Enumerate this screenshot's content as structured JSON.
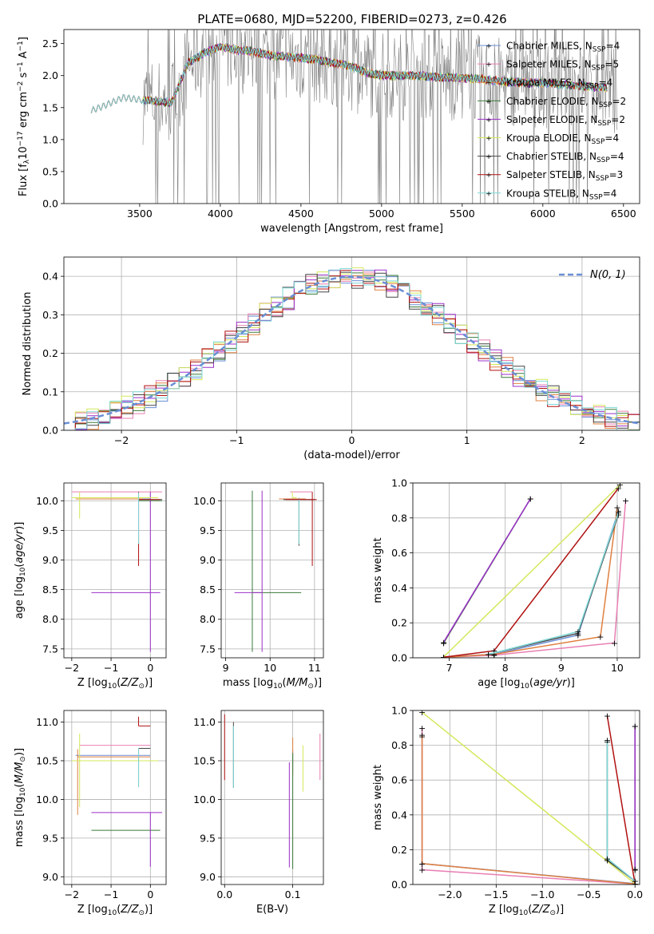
{
  "figure_title": "PLATE=0680, MJD=52200, FIBERID=0273, z=0.426",
  "colors": {
    "Chabrier MILES": "#6a8fd6",
    "Salpeter MILES": "#e87fb4",
    "Kroupa MILES": "#e08040",
    "Chabrier ELODIE": "#3a7a3a",
    "Salpeter ELODIE": "#9b30c8",
    "Kroupa ELODIE": "#d4e85a",
    "Chabrier STELIB": "#444444",
    "Salpeter STELIB": "#b01010",
    "Kroupa STELIB": "#7fd8d8",
    "data": "#808080"
  },
  "legend_spectrum": [
    {
      "base": "Chabrier MILES",
      "n": "4"
    },
    {
      "base": "Salpeter MILES",
      "n": "5"
    },
    {
      "base": "Kroupa MILES",
      "n": "4"
    },
    {
      "base": "Chabrier ELODIE",
      "n": "2"
    },
    {
      "base": "Salpeter ELODIE",
      "n": "2"
    },
    {
      "base": "Kroupa ELODIE",
      "n": "4"
    },
    {
      "base": "Chabrier STELIB",
      "n": "4"
    },
    {
      "base": "Salpeter STELIB",
      "n": "3"
    },
    {
      "base": "Kroupa STELIB",
      "n": "4"
    }
  ],
  "chart_data": [
    {
      "id": "spectrum",
      "type": "line",
      "title": "PLATE=0680, MJD=52200, FIBERID=0273, z=0.426",
      "xlabel": "wavelength [Angstrom, rest frame]",
      "ylabel": "Flux [f_λ 10^-17 erg cm^-2 s^-1 A^-1]",
      "xlim": [
        3030,
        6600
      ],
      "ylim": [
        0,
        2.72
      ],
      "xticks": [
        3500,
        4000,
        4500,
        5000,
        5500,
        6000,
        6500
      ],
      "yticks": [
        0.0,
        0.5,
        1.0,
        1.5,
        2.0,
        2.5
      ],
      "continuum": {
        "x": [
          3200,
          3300,
          3400,
          3500,
          3600,
          3700,
          3800,
          3900,
          4000,
          4100,
          4200,
          4300,
          4400,
          4500,
          4600,
          4700,
          4800,
          4900,
          5000,
          5200,
          5400,
          5600,
          5800,
          6000,
          6200,
          6400
        ],
        "y": [
          1.45,
          1.55,
          1.66,
          1.62,
          1.6,
          1.58,
          2.2,
          2.35,
          2.45,
          2.4,
          2.38,
          2.32,
          2.3,
          2.28,
          2.25,
          2.2,
          2.15,
          2.05,
          2.0,
          2.0,
          1.97,
          1.95,
          1.9,
          1.88,
          1.85,
          1.8
        ]
      },
      "series": [
        {
          "name": "Chabrier MILES, N_SSP=4"
        },
        {
          "name": "Salpeter MILES, N_SSP=5"
        },
        {
          "name": "Kroupa MILES, N_SSP=4"
        },
        {
          "name": "Chabrier ELODIE, N_SSP=2"
        },
        {
          "name": "Salpeter ELODIE, N_SSP=2"
        },
        {
          "name": "Kroupa ELODIE, N_SSP=4"
        },
        {
          "name": "Chabrier STELIB, N_SSP=4"
        },
        {
          "name": "Salpeter STELIB, N_SSP=3"
        },
        {
          "name": "Kroupa STELIB, N_SSP=4"
        }
      ],
      "data_noise_range": [
        3520,
        6460
      ],
      "legend_location": "top-right"
    },
    {
      "id": "residuals",
      "type": "step",
      "xlabel": "(data-model)/error",
      "ylabel": "Normed distribution",
      "xlim": [
        -2.5,
        2.5
      ],
      "ylim": [
        0,
        0.45
      ],
      "xticks": [
        -2,
        -1,
        0,
        1,
        2
      ],
      "yticks": [
        0.0,
        0.1,
        0.2,
        0.3,
        0.4
      ],
      "bin_width": 0.1,
      "gaussian_label": "N(0, 1)",
      "legend_location": "top-right",
      "grid": true
    },
    {
      "id": "age_vs_Z",
      "type": "errorbar",
      "xlabel": "Z [log10(Z/Z⊙)]",
      "ylabel": "age [log10(age/yr)]",
      "xlim": [
        -2.2,
        0.4
      ],
      "ylim": [
        7.35,
        10.3
      ],
      "xticks": [
        -2,
        -1,
        0
      ],
      "yticks": [
        7.5,
        8.0,
        8.5,
        9.0,
        9.5,
        10.0
      ],
      "points": [
        {
          "series": "Chabrier MILES",
          "x": -0.3,
          "y": 10.03,
          "xerr": [
            0.3,
            0.3
          ],
          "yerr": [
            0.05,
            0.02
          ]
        },
        {
          "series": "Salpeter MILES",
          "x": -0.3,
          "y": 10.15,
          "xerr": [
            1.7,
            0.6
          ],
          "yerr": [
            0.0,
            0.0
          ]
        },
        {
          "series": "Kroupa MILES",
          "x": -1.9,
          "y": 10.03,
          "xerr": [
            0.0,
            1.7
          ],
          "yerr": [
            0.0,
            0.0
          ]
        },
        {
          "series": "Chabrier ELODIE",
          "x": 0.0,
          "y": 10.0,
          "xerr": [
            0.3,
            0.3
          ],
          "yerr": [
            0.02,
            0.0
          ]
        },
        {
          "series": "Salpeter ELODIE",
          "x": 0.0,
          "y": 8.45,
          "xerr": [
            1.5,
            0.25
          ],
          "yerr": [
            1.0,
            1.7
          ]
        },
        {
          "series": "Kroupa ELODIE",
          "x": -1.8,
          "y": 10.05,
          "xerr": [
            0.2,
            2.0
          ],
          "yerr": [
            0.35,
            0.1
          ]
        },
        {
          "series": "Chabrier STELIB",
          "x": -0.3,
          "y": 10.02,
          "xerr": [
            0.0,
            0.6
          ],
          "yerr": [
            0.78,
            0.0
          ]
        },
        {
          "series": "Salpeter STELIB",
          "x": -0.3,
          "y": 10.02,
          "xerr": [
            0.0,
            0.55
          ],
          "yerr": [
            1.12,
            0.13
          ]
        },
        {
          "series": "Kroupa STELIB",
          "x": -0.3,
          "y": 10.02,
          "xerr": [
            0.0,
            0.0
          ],
          "yerr": [
            0.75,
            0.12
          ]
        }
      ]
    },
    {
      "id": "age_vs_mass",
      "type": "errorbar",
      "xlabel": "mass [log10(M/M⊙)]",
      "ylabel": "",
      "xlim": [
        8.9,
        11.2
      ],
      "ylim": [
        7.35,
        10.3
      ],
      "xticks": [
        9,
        10,
        11
      ],
      "yticks": [
        7.5,
        8.0,
        8.5,
        9.0,
        9.5,
        10.0
      ],
      "points": [
        {
          "series": "Chabrier MILES",
          "x": 10.65,
          "y": 10.03,
          "xerr": [
            0.0,
            0.05
          ],
          "yerr": [
            0.05,
            0.02
          ]
        },
        {
          "series": "Salpeter MILES",
          "x": 10.75,
          "y": 10.15,
          "xerr": [
            0.3,
            0.2
          ],
          "yerr": [
            0.0,
            0.0
          ]
        },
        {
          "series": "Kroupa MILES",
          "x": 10.5,
          "y": 10.03,
          "xerr": [
            0.3,
            0.3
          ],
          "yerr": [
            0.0,
            0.0
          ]
        },
        {
          "series": "Chabrier ELODIE",
          "x": 9.6,
          "y": 8.45,
          "xerr": [
            0.0,
            1.1
          ],
          "yerr": [
            1.0,
            1.72
          ]
        },
        {
          "series": "Salpeter ELODIE",
          "x": 9.82,
          "y": 8.45,
          "xerr": [
            0.62,
            0.0
          ],
          "yerr": [
            1.0,
            1.72
          ]
        },
        {
          "series": "Kroupa ELODIE",
          "x": 10.5,
          "y": 10.05,
          "xerr": [
            0.0,
            0.1
          ],
          "yerr": [
            0.0,
            0.1
          ]
        },
        {
          "series": "Chabrier STELIB",
          "x": 10.65,
          "y": 10.02,
          "xerr": [
            0.35,
            0.35
          ],
          "yerr": [
            0.78,
            0.0
          ]
        },
        {
          "series": "Salpeter STELIB",
          "x": 10.95,
          "y": 10.02,
          "xerr": [
            0.6,
            0.1
          ],
          "yerr": [
            1.12,
            0.13
          ]
        },
        {
          "series": "Kroupa STELIB",
          "x": 10.65,
          "y": 10.02,
          "xerr": [
            0.0,
            0.0
          ],
          "yerr": [
            0.75,
            0.0
          ]
        }
      ]
    },
    {
      "id": "massweight_vs_age",
      "type": "line",
      "xlabel": "age [log10(age/yr)]",
      "ylabel": "mass weight",
      "xlim": [
        6.35,
        10.4
      ],
      "ylim": [
        0,
        1.0
      ],
      "xticks": [
        7,
        8,
        9,
        10
      ],
      "yticks": [
        0.0,
        0.2,
        0.4,
        0.6,
        0.8,
        1.0
      ],
      "grid": true,
      "series": [
        {
          "series": "Chabrier MILES",
          "x": [
            6.9,
            7.8,
            9.3,
            10.02
          ],
          "y": [
            0.005,
            0.02,
            0.13,
            0.84
          ]
        },
        {
          "series": "Salpeter MILES",
          "x": [
            6.9,
            7.8,
            9.95,
            10.15
          ],
          "y": [
            0.003,
            0.015,
            0.085,
            0.9
          ]
        },
        {
          "series": "Kroupa MILES",
          "x": [
            6.9,
            7.8,
            9.7,
            10.0
          ],
          "y": [
            0.003,
            0.02,
            0.12,
            0.86
          ]
        },
        {
          "series": "Chabrier ELODIE",
          "x": [
            6.9,
            8.45
          ],
          "y": [
            0.085,
            0.91
          ]
        },
        {
          "series": "Salpeter ELODIE",
          "x": [
            6.9,
            8.45
          ],
          "y": [
            0.09,
            0.91
          ]
        },
        {
          "series": "Kroupa ELODIE",
          "x": [
            6.9,
            10.05
          ],
          "y": [
            0.005,
            0.99
          ]
        },
        {
          "series": "Chabrier STELIB",
          "x": [
            7.7,
            9.3,
            10.02
          ],
          "y": [
            0.02,
            0.14,
            0.82
          ]
        },
        {
          "series": "Salpeter STELIB",
          "x": [
            6.9,
            7.8,
            10.02
          ],
          "y": [
            0.003,
            0.04,
            0.97
          ]
        },
        {
          "series": "Kroupa STELIB",
          "x": [
            7.7,
            9.3,
            10.02
          ],
          "y": [
            0.02,
            0.15,
            0.83
          ]
        }
      ]
    },
    {
      "id": "mass_vs_Z",
      "type": "errorbar",
      "xlabel": "Z [log10(Z/Z⊙)]",
      "ylabel": "mass [log10(M/M⊙)]",
      "xlim": [
        -2.2,
        0.4
      ],
      "ylim": [
        8.9,
        11.15
      ],
      "xticks": [
        -2,
        -1,
        0
      ],
      "yticks": [
        9.0,
        9.5,
        10.0,
        10.5,
        11.0
      ],
      "points": [
        {
          "series": "Chabrier MILES",
          "x": -1.9,
          "y": 10.57,
          "xerr": [
            0.0,
            1.9
          ],
          "yerr": [
            0.0,
            0.0
          ]
        },
        {
          "series": "Salpeter MILES",
          "x": -1.8,
          "y": 10.7,
          "xerr": [
            0.0,
            1.8
          ],
          "yerr": [
            0.0,
            0.0
          ]
        },
        {
          "series": "Kroupa MILES",
          "x": -1.85,
          "y": 10.55,
          "xerr": [
            0.0,
            1.85
          ],
          "yerr": [
            0.75,
            0.1
          ]
        },
        {
          "series": "Chabrier ELODIE",
          "x": -0.3,
          "y": 9.6,
          "xerr": [
            1.2,
            0.55
          ],
          "yerr": [
            0.0,
            0.0
          ]
        },
        {
          "series": "Salpeter ELODIE",
          "x": 0.0,
          "y": 9.83,
          "xerr": [
            1.5,
            0.3
          ],
          "yerr": [
            0.7,
            0.0
          ]
        },
        {
          "series": "Kroupa ELODIE",
          "x": -1.8,
          "y": 10.5,
          "xerr": [
            0.2,
            2.0
          ],
          "yerr": [
            0.6,
            0.35
          ]
        },
        {
          "series": "Chabrier STELIB",
          "x": -0.3,
          "y": 10.66,
          "xerr": [
            0.0,
            0.3
          ],
          "yerr": [
            0.5,
            0.0
          ]
        },
        {
          "series": "Salpeter STELIB",
          "x": -0.3,
          "y": 10.95,
          "xerr": [
            0.0,
            0.3
          ],
          "yerr": [
            0.0,
            0.12
          ]
        },
        {
          "series": "Kroupa STELIB",
          "x": -0.3,
          "y": 10.66,
          "xerr": [
            0.0,
            0.0
          ],
          "yerr": [
            0.5,
            0.0
          ]
        }
      ]
    },
    {
      "id": "mass_vs_ebv",
      "type": "errorbar",
      "xlabel": "E(B-V)",
      "ylabel": "",
      "xlim": [
        -0.005,
        0.145
      ],
      "ylim": [
        8.9,
        11.15
      ],
      "xticks": [
        0.0,
        0.1
      ],
      "yticks": [
        9.0,
        9.5,
        10.0,
        10.5,
        11.0
      ],
      "points": [
        {
          "series": "Chabrier MILES",
          "x": 0.1,
          "y": 10.55,
          "xerr": [
            0.0,
            0.0
          ],
          "yerr": [
            0.2,
            0.1
          ]
        },
        {
          "series": "Salpeter MILES",
          "x": 0.14,
          "y": 10.55,
          "xerr": [
            0.0,
            0.0
          ],
          "yerr": [
            0.3,
            0.3
          ]
        },
        {
          "series": "Kroupa MILES",
          "x": 0.1,
          "y": 10.6,
          "xerr": [
            0.0,
            0.0
          ],
          "yerr": [
            0.3,
            0.2
          ]
        },
        {
          "series": "Chabrier ELODIE",
          "x": 0.1,
          "y": 10.0,
          "xerr": [
            0.0,
            0.0
          ],
          "yerr": [
            0.9,
            0.6
          ]
        },
        {
          "series": "Salpeter ELODIE",
          "x": 0.095,
          "y": 9.8,
          "xerr": [
            0.0,
            0.0
          ],
          "yerr": [
            0.68,
            0.68
          ]
        },
        {
          "series": "Kroupa ELODIE",
          "x": 0.115,
          "y": 10.4,
          "xerr": [
            0.0,
            0.0
          ],
          "yerr": [
            0.3,
            0.3
          ]
        },
        {
          "series": "Chabrier STELIB",
          "x": 0.013,
          "y": 10.6,
          "xerr": [
            0.0,
            0.0
          ],
          "yerr": [
            0.45,
            0.4
          ]
        },
        {
          "series": "Salpeter STELIB",
          "x": 0.0,
          "y": 10.65,
          "xerr": [
            0.0,
            0.0
          ],
          "yerr": [
            0.4,
            0.45
          ]
        },
        {
          "series": "Kroupa STELIB",
          "x": 0.013,
          "y": 10.6,
          "xerr": [
            0.0,
            0.0
          ],
          "yerr": [
            0.45,
            0.35
          ]
        }
      ]
    },
    {
      "id": "massweight_vs_Z",
      "type": "line",
      "xlabel": "Z [log10(Z/Z⊙)]",
      "ylabel": "mass weight",
      "xlim": [
        -2.4,
        0.05
      ],
      "ylim": [
        0,
        1.0
      ],
      "xticks": [
        -2.0,
        -1.5,
        -1.0,
        -0.5,
        0.0
      ],
      "yticks": [
        0.0,
        0.2,
        0.4,
        0.6,
        0.8,
        1.0
      ],
      "grid": true,
      "series": [
        {
          "series": "Chabrier MILES",
          "x": [
            -2.3,
            -2.3,
            0.0
          ],
          "y": [
            0.85,
            0.12,
            0.005
          ]
        },
        {
          "series": "Salpeter MILES",
          "x": [
            -2.3,
            -2.3,
            0.0
          ],
          "y": [
            0.9,
            0.085,
            0.003
          ]
        },
        {
          "series": "Kroupa MILES",
          "x": [
            -2.3,
            -2.3,
            0.0
          ],
          "y": [
            0.86,
            0.12,
            0.003
          ]
        },
        {
          "series": "Chabrier ELODIE",
          "x": [
            0.0,
            0.0
          ],
          "y": [
            0.91,
            0.085
          ]
        },
        {
          "series": "Salpeter ELODIE",
          "x": [
            0.0,
            0.0
          ],
          "y": [
            0.91,
            0.09
          ]
        },
        {
          "series": "Kroupa ELODIE",
          "x": [
            -2.3,
            0.0
          ],
          "y": [
            0.99,
            0.005
          ]
        },
        {
          "series": "Chabrier STELIB",
          "x": [
            -0.3,
            -0.3,
            0.0
          ],
          "y": [
            0.82,
            0.14,
            0.02
          ]
        },
        {
          "series": "Salpeter STELIB",
          "x": [
            -0.3,
            0.0
          ],
          "y": [
            0.97,
            0.003
          ]
        },
        {
          "series": "Kroupa STELIB",
          "x": [
            -0.3,
            -0.3,
            0.0
          ],
          "y": [
            0.83,
            0.15,
            0.02
          ]
        }
      ]
    }
  ]
}
